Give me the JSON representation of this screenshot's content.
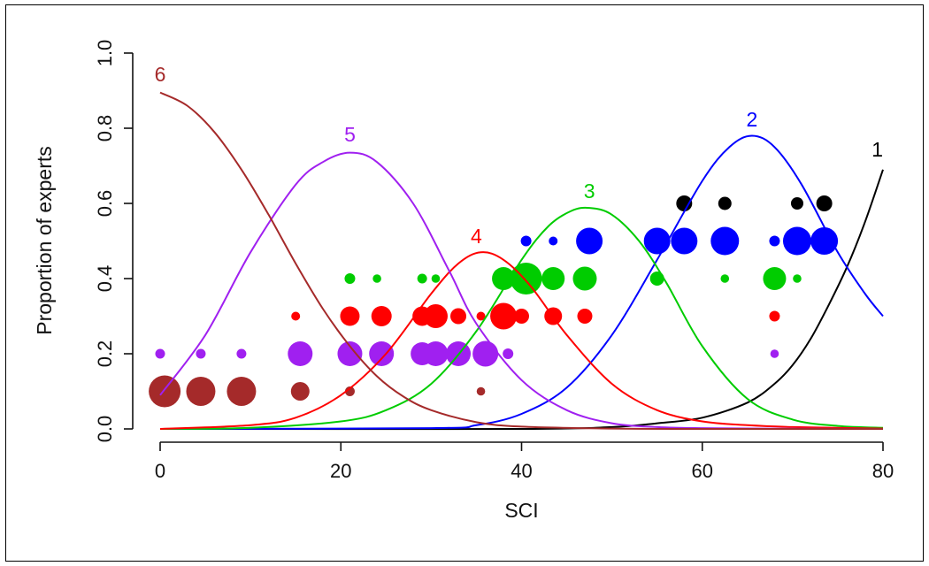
{
  "chart_data": {
    "type": "line",
    "title": "",
    "xlabel": "SCI",
    "ylabel": "Proportion of experts",
    "xlim": [
      0,
      80
    ],
    "ylim": [
      0,
      1.0
    ],
    "x_ticks": [
      0,
      20,
      40,
      60,
      80
    ],
    "x_tick_labels": [
      "0",
      "20",
      "40",
      "60",
      "80"
    ],
    "y_ticks": [
      0,
      0.2,
      0.4,
      0.6,
      0.8,
      1.0
    ],
    "y_tick_labels": [
      "0.0",
      "0.2",
      "0.4",
      "0.6",
      "0.8",
      "1.0"
    ],
    "grid": false,
    "legend": "none",
    "curves": [
      {
        "label": "1",
        "color": "#000000",
        "x": [
          0,
          40,
          50,
          55,
          60,
          65,
          68,
          70,
          72,
          74,
          76,
          78,
          80
        ],
        "y": [
          0,
          0,
          0.005,
          0.015,
          0.03,
          0.07,
          0.12,
          0.17,
          0.24,
          0.33,
          0.43,
          0.55,
          0.69
        ]
      },
      {
        "label": "2",
        "color": "#0000ff",
        "x": [
          0,
          30,
          35,
          40,
          45,
          50,
          55,
          60,
          63,
          65.5,
          68,
          71,
          75,
          78,
          80
        ],
        "y": [
          0,
          0.002,
          0.01,
          0.04,
          0.11,
          0.25,
          0.45,
          0.66,
          0.75,
          0.78,
          0.75,
          0.65,
          0.47,
          0.36,
          0.3
        ]
      },
      {
        "label": "3",
        "color": "#00cc00",
        "x": [
          0,
          10,
          20,
          25,
          30,
          35,
          40,
          43,
          45.5,
          47.5,
          50,
          53,
          56,
          60,
          65,
          70,
          75,
          80
        ],
        "y": [
          0,
          0.003,
          0.02,
          0.05,
          0.12,
          0.26,
          0.45,
          0.54,
          0.58,
          0.588,
          0.57,
          0.5,
          0.39,
          0.22,
          0.08,
          0.025,
          0.008,
          0.003
        ]
      },
      {
        "label": "4",
        "color": "#ff0000",
        "x": [
          0,
          10,
          15,
          20,
          25,
          30,
          33,
          35.5,
          38,
          41,
          45,
          50,
          55,
          60,
          65,
          70,
          80
        ],
        "y": [
          0,
          0.01,
          0.03,
          0.09,
          0.2,
          0.36,
          0.44,
          0.47,
          0.45,
          0.38,
          0.25,
          0.12,
          0.05,
          0.02,
          0.01,
          0.005,
          0.001
        ]
      },
      {
        "label": "5",
        "color": "#a020f0",
        "x": [
          0,
          5,
          10,
          15,
          18,
          21,
          24,
          28,
          32,
          35,
          40,
          45,
          50,
          55,
          60,
          70,
          80
        ],
        "y": [
          0.09,
          0.25,
          0.47,
          0.65,
          0.71,
          0.735,
          0.71,
          0.6,
          0.42,
          0.28,
          0.13,
          0.05,
          0.015,
          0.005,
          0.002,
          0.0005,
          0
        ],
        "x_end": 80
      },
      {
        "label": "6",
        "color": "#a52a2a",
        "x": [
          0,
          3,
          6,
          9,
          12,
          15,
          18,
          21,
          24,
          27,
          30,
          35,
          40,
          50,
          60,
          80
        ],
        "y": [
          0.895,
          0.86,
          0.79,
          0.69,
          0.57,
          0.44,
          0.32,
          0.22,
          0.14,
          0.085,
          0.05,
          0.018,
          0.006,
          0.001,
          0,
          0
        ]
      }
    ],
    "points": [
      {
        "series": "6",
        "color": "#a52a2a",
        "x": [
          0.5,
          4.5,
          9,
          15.5,
          21,
          35.5
        ],
        "y": [
          0.1,
          0.1,
          0.1,
          0.1,
          0.1,
          0.1
        ],
        "size": [
          3,
          2.7,
          2.7,
          1.5,
          0.5,
          0.35
        ]
      },
      {
        "series": "5",
        "color": "#a020f0",
        "x": [
          0,
          4.5,
          9,
          15.5,
          21,
          24.5,
          29,
          30.5,
          33,
          36,
          38.5,
          68
        ],
        "y": [
          0.2,
          0.2,
          0.2,
          0.2,
          0.2,
          0.2,
          0.2,
          0.2,
          0.2,
          0.2,
          0.2,
          0.2
        ],
        "size": [
          0.5,
          0.5,
          0.5,
          2.2,
          2.2,
          2.2,
          2,
          2.2,
          2.2,
          2.3,
          0.6,
          0.35
        ]
      },
      {
        "series": "4",
        "color": "#ff0000",
        "x": [
          15,
          21,
          24.5,
          29,
          30.5,
          33,
          35.5,
          38,
          40,
          43.5,
          47,
          68
        ],
        "y": [
          0.3,
          0.3,
          0.3,
          0.3,
          0.3,
          0.3,
          0.3,
          0.3,
          0.3,
          0.3,
          0.3,
          0.3
        ],
        "size": [
          0.4,
          1.6,
          1.7,
          1.6,
          2.1,
          1.2,
          0.4,
          2.4,
          1.1,
          1.4,
          1.1,
          0.6
        ]
      },
      {
        "series": "3",
        "color": "#00cc00",
        "x": [
          21,
          24,
          29,
          30.5,
          38,
          40.5,
          43.5,
          47,
          55,
          62.5,
          68,
          70.5
        ],
        "y": [
          0.4,
          0.4,
          0.4,
          0.4,
          0.4,
          0.4,
          0.4,
          0.4,
          0.4,
          0.4,
          0.4,
          0.4
        ],
        "size": [
          0.6,
          0.35,
          0.5,
          0.35,
          2,
          3,
          2,
          2.1,
          1,
          0.35,
          2,
          0.35
        ]
      },
      {
        "series": "2",
        "color": "#0000ff",
        "x": [
          40.5,
          43.5,
          47.5,
          55,
          58,
          62.5,
          68,
          70.5,
          73.5
        ],
        "y": [
          0.5,
          0.5,
          0.5,
          0.5,
          0.5,
          0.5,
          0.5,
          0.5,
          0.5
        ],
        "size": [
          0.6,
          0.4,
          2.4,
          2.4,
          2.4,
          2.6,
          0.6,
          2.6,
          2.5
        ]
      },
      {
        "series": "1",
        "color": "#000000",
        "x": [
          58,
          62.5,
          70.5,
          73.5
        ],
        "y": [
          0.6,
          0.6,
          0.6,
          0.6
        ],
        "size": [
          1.2,
          0.9,
          0.8,
          1.2
        ]
      }
    ]
  }
}
